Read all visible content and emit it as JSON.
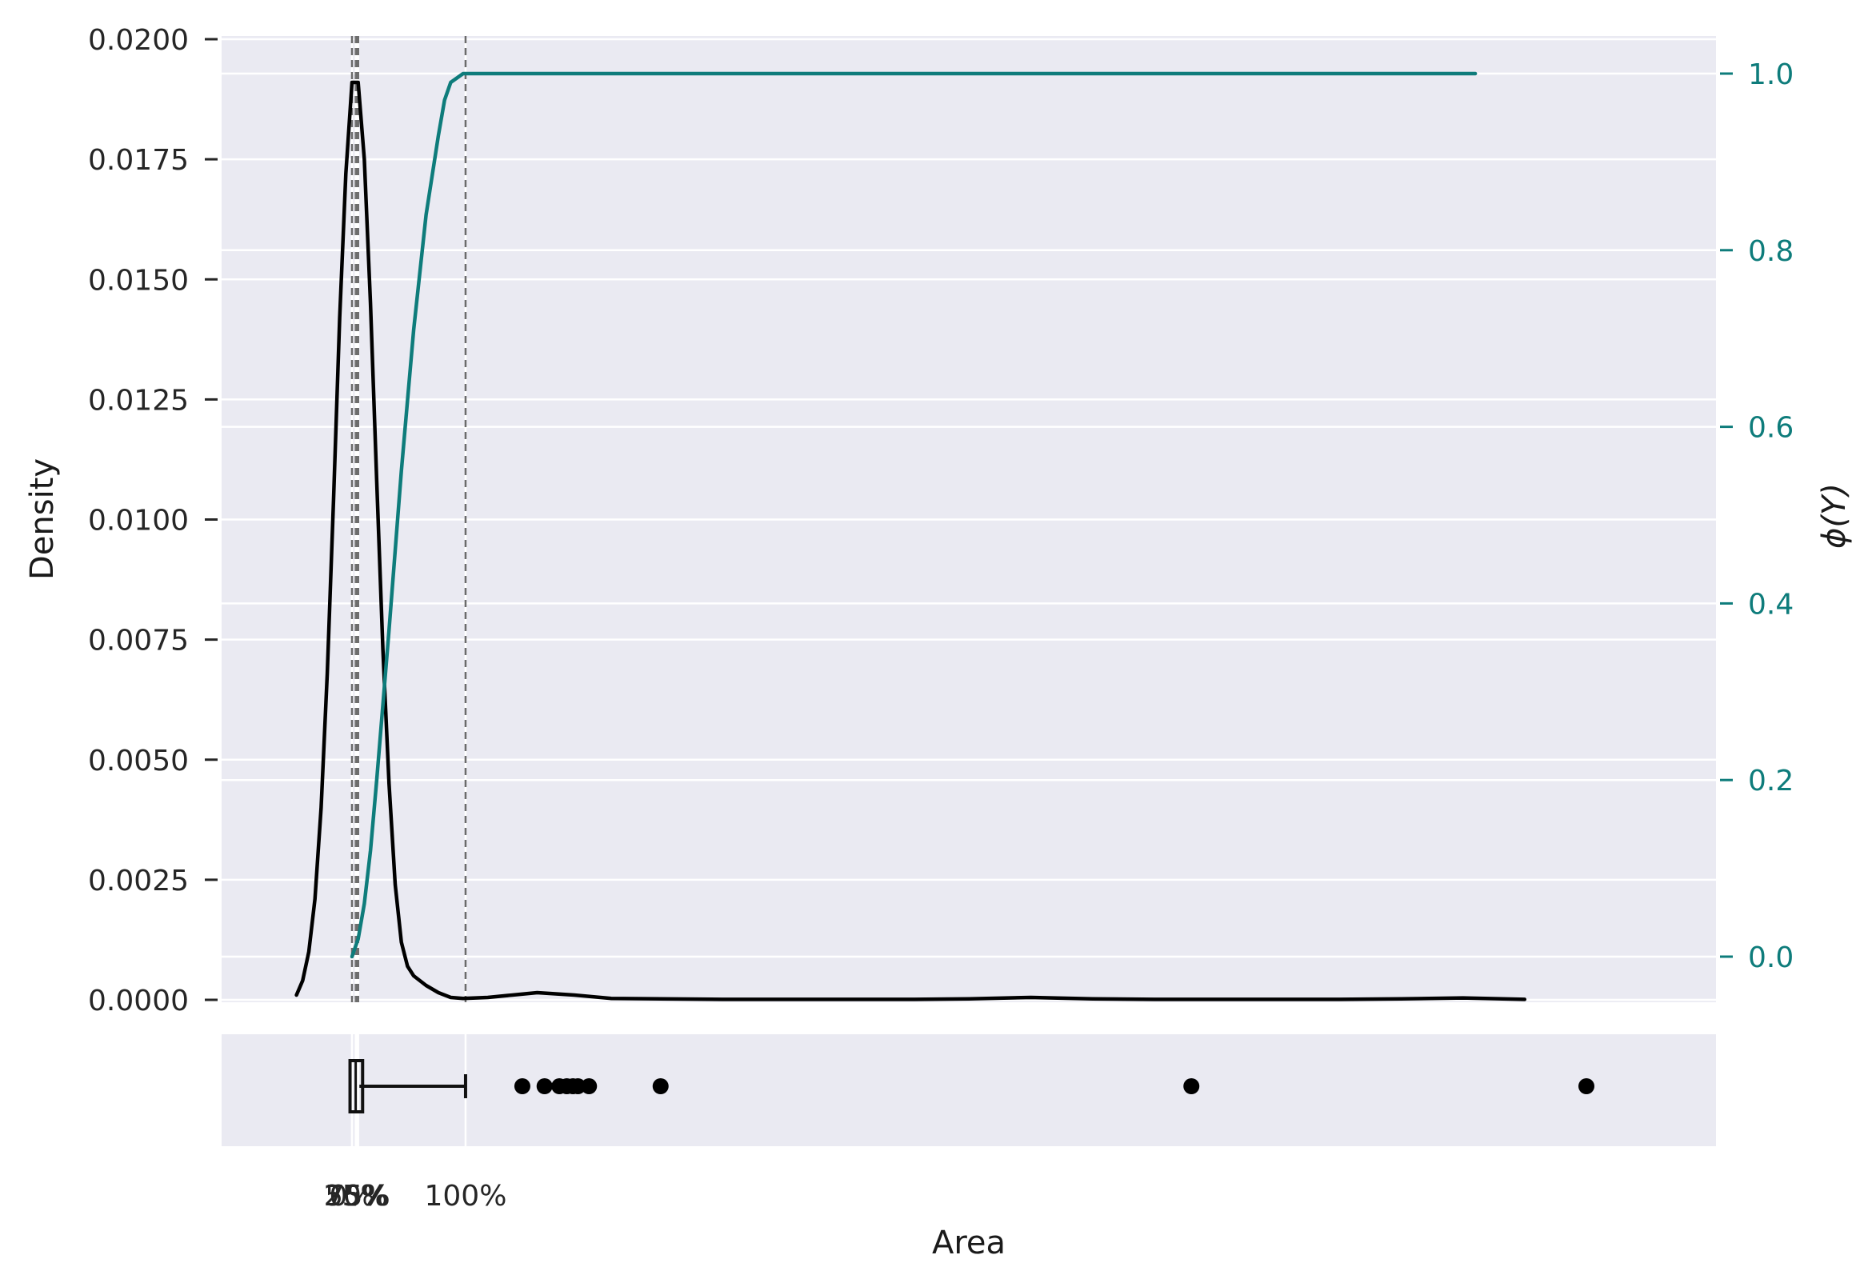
{
  "chart_data": {
    "type": "line",
    "xlabel": "Area",
    "ylabel_left": "Density",
    "ylabel_right": "ϕ(Y)",
    "grid": true,
    "x_range": [
      0,
      100
    ],
    "left_axis": {
      "ylim": [
        0,
        0.02
      ],
      "ticks": [
        "0.0000",
        "0.0025",
        "0.0050",
        "0.0075",
        "0.0100",
        "0.0125",
        "0.0150",
        "0.0175",
        "0.0200"
      ]
    },
    "right_axis": {
      "ylim": [
        -0.05,
        1.05
      ],
      "ticks": [
        "0.0",
        "0.2",
        "0.4",
        "0.6",
        "0.8",
        "1.0"
      ],
      "color": "#0e7c7b"
    },
    "series": [
      {
        "color": "#000000",
        "axis": "left",
        "x": [
          -4.5,
          -4,
          -3.5,
          -3,
          -2.5,
          -2,
          -1.5,
          -1,
          -0.5,
          0,
          0.5,
          1,
          1.5,
          2,
          2.5,
          3,
          3.5,
          4,
          4.5,
          5,
          6,
          7,
          8,
          9,
          11,
          13,
          15,
          18,
          21,
          25,
          30,
          35,
          40,
          45,
          50,
          55,
          60,
          65,
          70,
          75,
          80,
          85,
          90,
          95
        ],
        "y": [
          0.0001,
          0.0004,
          0.001,
          0.0021,
          0.004,
          0.0068,
          0.0104,
          0.0142,
          0.0172,
          0.0191,
          0.0191,
          0.0175,
          0.0145,
          0.0108,
          0.0073,
          0.0045,
          0.0024,
          0.0012,
          0.0007,
          0.0005,
          0.0003,
          0.00015,
          5e-05,
          3e-05,
          5e-05,
          0.0001,
          0.00015,
          0.0001,
          3e-05,
          2e-05,
          1e-05,
          1e-05,
          1e-05,
          1e-05,
          2e-05,
          5e-05,
          2e-05,
          1e-05,
          1e-05,
          1e-05,
          1e-05,
          2e-05,
          4e-05,
          1e-05
        ]
      },
      {
        "color": "#0e7c7b",
        "axis": "right",
        "x": [
          0,
          0.5,
          1,
          1.5,
          2,
          3,
          4,
          5,
          6,
          7,
          7.5,
          8,
          9,
          20,
          40,
          60,
          80,
          91
        ],
        "y": [
          0.0,
          0.02,
          0.06,
          0.12,
          0.2,
          0.37,
          0.55,
          0.71,
          0.84,
          0.93,
          0.97,
          0.99,
          1.0,
          1.0,
          1.0,
          1.0,
          1.0,
          1.0
        ]
      }
    ],
    "quantile_lines": [
      {
        "label": "0%",
        "x": 0
      },
      {
        "label": "25%",
        "x": 0.3
      },
      {
        "label": "50%",
        "x": 0.4
      },
      {
        "label": "75%",
        "x": 0.5
      },
      {
        "label": "100%",
        "x": 9.2
      }
    ],
    "boxplot": {
      "q1": 0.1,
      "median": 0.3,
      "q3": 0.6,
      "whisker_low": 0.1,
      "whisker_high": 9.2,
      "outliers": [
        13.8,
        15.6,
        16.8,
        17.4,
        17.9,
        18.3,
        19.2,
        25.0,
        68.0,
        100.0
      ]
    }
  }
}
